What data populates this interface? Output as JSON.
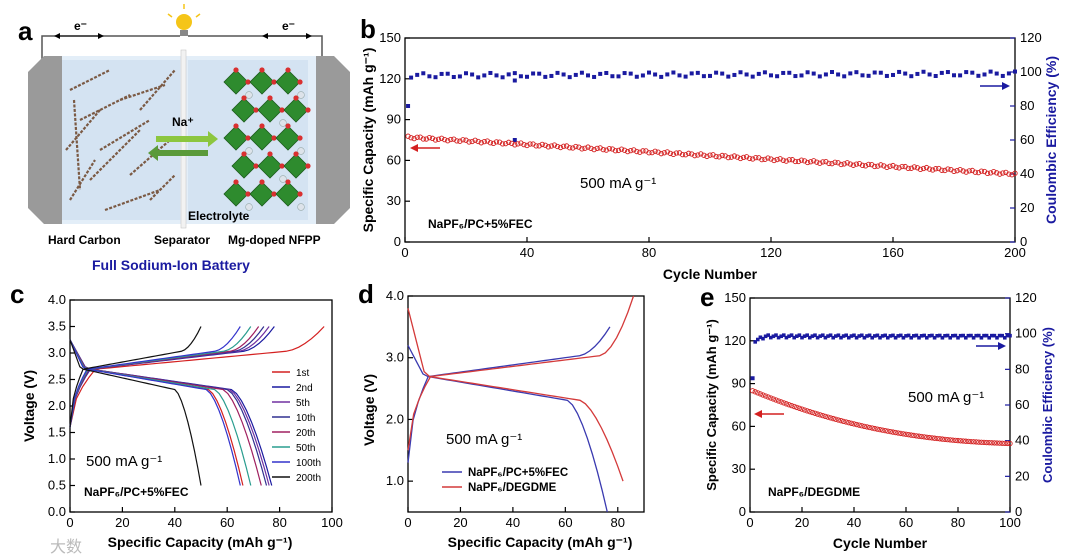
{
  "panel_letters": [
    "a",
    "b",
    "c",
    "d",
    "e"
  ],
  "schematic": {
    "electron_left": "e⁻",
    "electron_right": "e⁻",
    "ion": "Na⁺",
    "electrolyte": "Electrolyte",
    "anode": "Hard Carbon",
    "separator": "Separator",
    "cathode": "Mg-doped NFPP",
    "caption": "Full Sodium-Ion Battery",
    "colors": {
      "caption": "#1a1aa0",
      "arrow_green": "#5a9a3a",
      "crystal": "#2e8b2e",
      "oxygen": "#d93030"
    }
  },
  "chart_data": [
    {
      "id": "b",
      "type": "scatter",
      "xlabel": "Cycle Number",
      "ylabel": "Specific Capacity (mAh g⁻¹)",
      "y2label": "Coulombic Efficiency (%)",
      "xlim": [
        0,
        200
      ],
      "xticks": [
        0,
        40,
        80,
        120,
        160,
        200
      ],
      "ylim": [
        0,
        150
      ],
      "yticks": [
        0,
        30,
        60,
        90,
        120,
        150
      ],
      "y2lim": [
        0,
        120
      ],
      "y2ticks": [
        0,
        20,
        40,
        60,
        80,
        100,
        120
      ],
      "annotation_rate": "500 mA g⁻¹",
      "annotation_electrolyte": "NaPF₆/PC+5%FEC",
      "series": [
        {
          "role": "capacity",
          "axis": "left",
          "color": "#d42020",
          "x_range": [
            1,
            200
          ],
          "start": 77,
          "end": 50
        },
        {
          "role": "efficiency",
          "axis": "right",
          "color": "#1a1aa0",
          "x_range": [
            1,
            200
          ],
          "start": 98,
          "end": 99,
          "outliers": [
            {
              "x": 1,
              "y": 80
            },
            {
              "x": 36,
              "y": 60
            },
            {
              "x": 36,
              "y": 95
            }
          ]
        }
      ]
    },
    {
      "id": "c",
      "type": "line",
      "xlabel": "Specific Capacity (mAh g⁻¹)",
      "ylabel": "Voltage (V)",
      "xlim": [
        0,
        100
      ],
      "xticks": [
        0,
        20,
        40,
        60,
        80,
        100
      ],
      "ylim": [
        0,
        4
      ],
      "yticks": [
        "0.0",
        "0.5",
        "1.0",
        "1.5",
        "2.0",
        "2.5",
        "3.0",
        "3.5",
        "4.0"
      ],
      "annotation_rate": "500 mA g⁻¹",
      "annotation_electrolyte": "NaPF₆/PC+5%FEC",
      "series": [
        {
          "name": "1st",
          "color": "#d42020",
          "charge_cap": 97,
          "discharge_cap": 66
        },
        {
          "name": "2nd",
          "color": "#1a1aa0",
          "charge_cap": 78,
          "discharge_cap": 77
        },
        {
          "name": "5th",
          "color": "#7030a0",
          "charge_cap": 76,
          "discharge_cap": 76
        },
        {
          "name": "10th",
          "color": "#303090",
          "charge_cap": 74,
          "discharge_cap": 75
        },
        {
          "name": "20th",
          "color": "#a02060",
          "charge_cap": 72,
          "discharge_cap": 73
        },
        {
          "name": "50th",
          "color": "#2a9d8f",
          "charge_cap": 69,
          "discharge_cap": 69
        },
        {
          "name": "100th",
          "color": "#3333cc",
          "charge_cap": 65,
          "discharge_cap": 65
        },
        {
          "name": "200th",
          "color": "#111111",
          "charge_cap": 50,
          "discharge_cap": 50
        }
      ]
    },
    {
      "id": "d",
      "type": "line",
      "xlabel": "Specific Capacity (mAh g⁻¹)",
      "ylabel": "Voltage (V)",
      "xlim": [
        0,
        90
      ],
      "xticks": [
        0,
        20,
        40,
        60,
        80
      ],
      "ylim": [
        0.5,
        4.0
      ],
      "yticks": [
        "1.0",
        "2.0",
        "3.0",
        "4.0"
      ],
      "annotation_rate": "500 mA g⁻¹",
      "series": [
        {
          "name": "NaPF₆/PC+5%FEC",
          "color": "#3a3ab0",
          "charge_cap": 77,
          "discharge_cap": 76
        },
        {
          "name": "NaPF₆/DEGDME",
          "color": "#d43a3a",
          "charge_cap": 86,
          "discharge_cap": 82
        }
      ]
    },
    {
      "id": "e",
      "type": "scatter",
      "xlabel": "Cycle Number",
      "ylabel": "Specific Capacity (mAh g⁻¹)",
      "y2label": "Coulombic Efficiency (%)",
      "xlim": [
        0,
        100
      ],
      "xticks": [
        0,
        20,
        40,
        60,
        80,
        100
      ],
      "ylim": [
        0,
        150
      ],
      "yticks": [
        0,
        30,
        60,
        90,
        120,
        150
      ],
      "y2lim": [
        0,
        120
      ],
      "y2ticks": [
        0,
        20,
        40,
        60,
        80,
        100,
        120
      ],
      "annotation_rate": "500 mA g⁻¹",
      "annotation_electrolyte": "NaPF₆/DEGDME",
      "series": [
        {
          "role": "capacity",
          "axis": "left",
          "color": "#d42020",
          "x_range": [
            1,
            100
          ],
          "start": 85,
          "end": 48
        },
        {
          "role": "efficiency",
          "axis": "right",
          "color": "#1a1aa0",
          "x_range": [
            1,
            100
          ],
          "start": 96,
          "end": 99,
          "outliers": [
            {
              "x": 1,
              "y": 75
            }
          ]
        }
      ]
    }
  ],
  "watermark": "大数"
}
